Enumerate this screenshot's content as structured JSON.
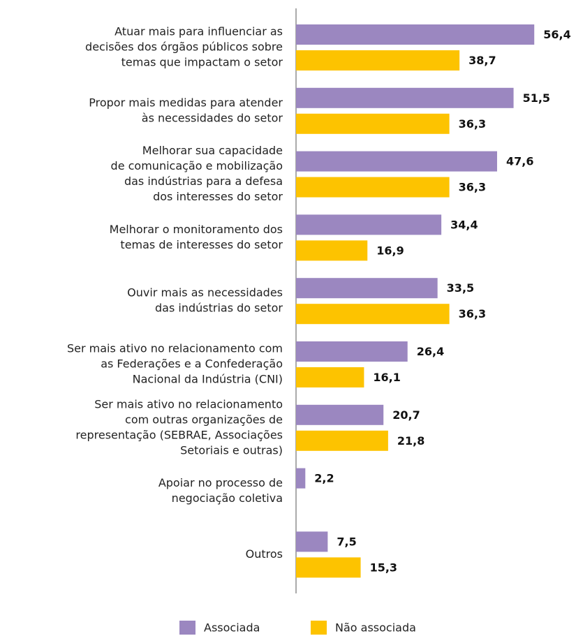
{
  "chart_data": {
    "type": "bar",
    "orientation": "horizontal",
    "categories": [
      [
        "Atuar mais para influenciar as",
        "decisões dos órgãos públicos sobre",
        "temas que impactam o setor"
      ],
      [
        "Propor mais medidas para atender",
        "às necessidades do setor"
      ],
      [
        "Melhorar sua capacidade",
        "de comunicação e mobilização",
        "das indústrias para a defesa",
        "dos interesses do setor"
      ],
      [
        "Melhorar o monitoramento dos",
        "temas de interesses do setor"
      ],
      [
        "Ouvir mais as necessidades",
        "das indústrias do setor"
      ],
      [
        "Ser mais ativo no relacionamento com",
        "as Federações e a Confederação",
        "Nacional da Indústria (CNI)"
      ],
      [
        "Ser mais ativo no relacionamento",
        "com outras organizações de",
        "representação (SEBRAE, Associações",
        "Setoriais e outras)"
      ],
      [
        "Apoiar no processo de",
        "negociação coletiva"
      ],
      [
        "Outros"
      ]
    ],
    "series": [
      {
        "name": "Associada",
        "color": "#9b87c0",
        "values": [
          56.4,
          51.5,
          47.6,
          34.4,
          33.5,
          26.4,
          20.7,
          2.2,
          7.5
        ],
        "value_labels": [
          "56,4",
          "51,5",
          "47,6",
          "34,4",
          "33,5",
          "26,4",
          "20,7",
          "2,2",
          "7,5"
        ]
      },
      {
        "name": "Não associada",
        "color": "#fdc300",
        "values": [
          38.7,
          36.3,
          36.3,
          16.9,
          36.3,
          16.1,
          21.8,
          null,
          15.3
        ],
        "value_labels": [
          "38,7",
          "36,3",
          "36,3",
          "16,9",
          "36,3",
          "16,1",
          "21,8",
          null,
          "15,3"
        ]
      }
    ]
  }
}
